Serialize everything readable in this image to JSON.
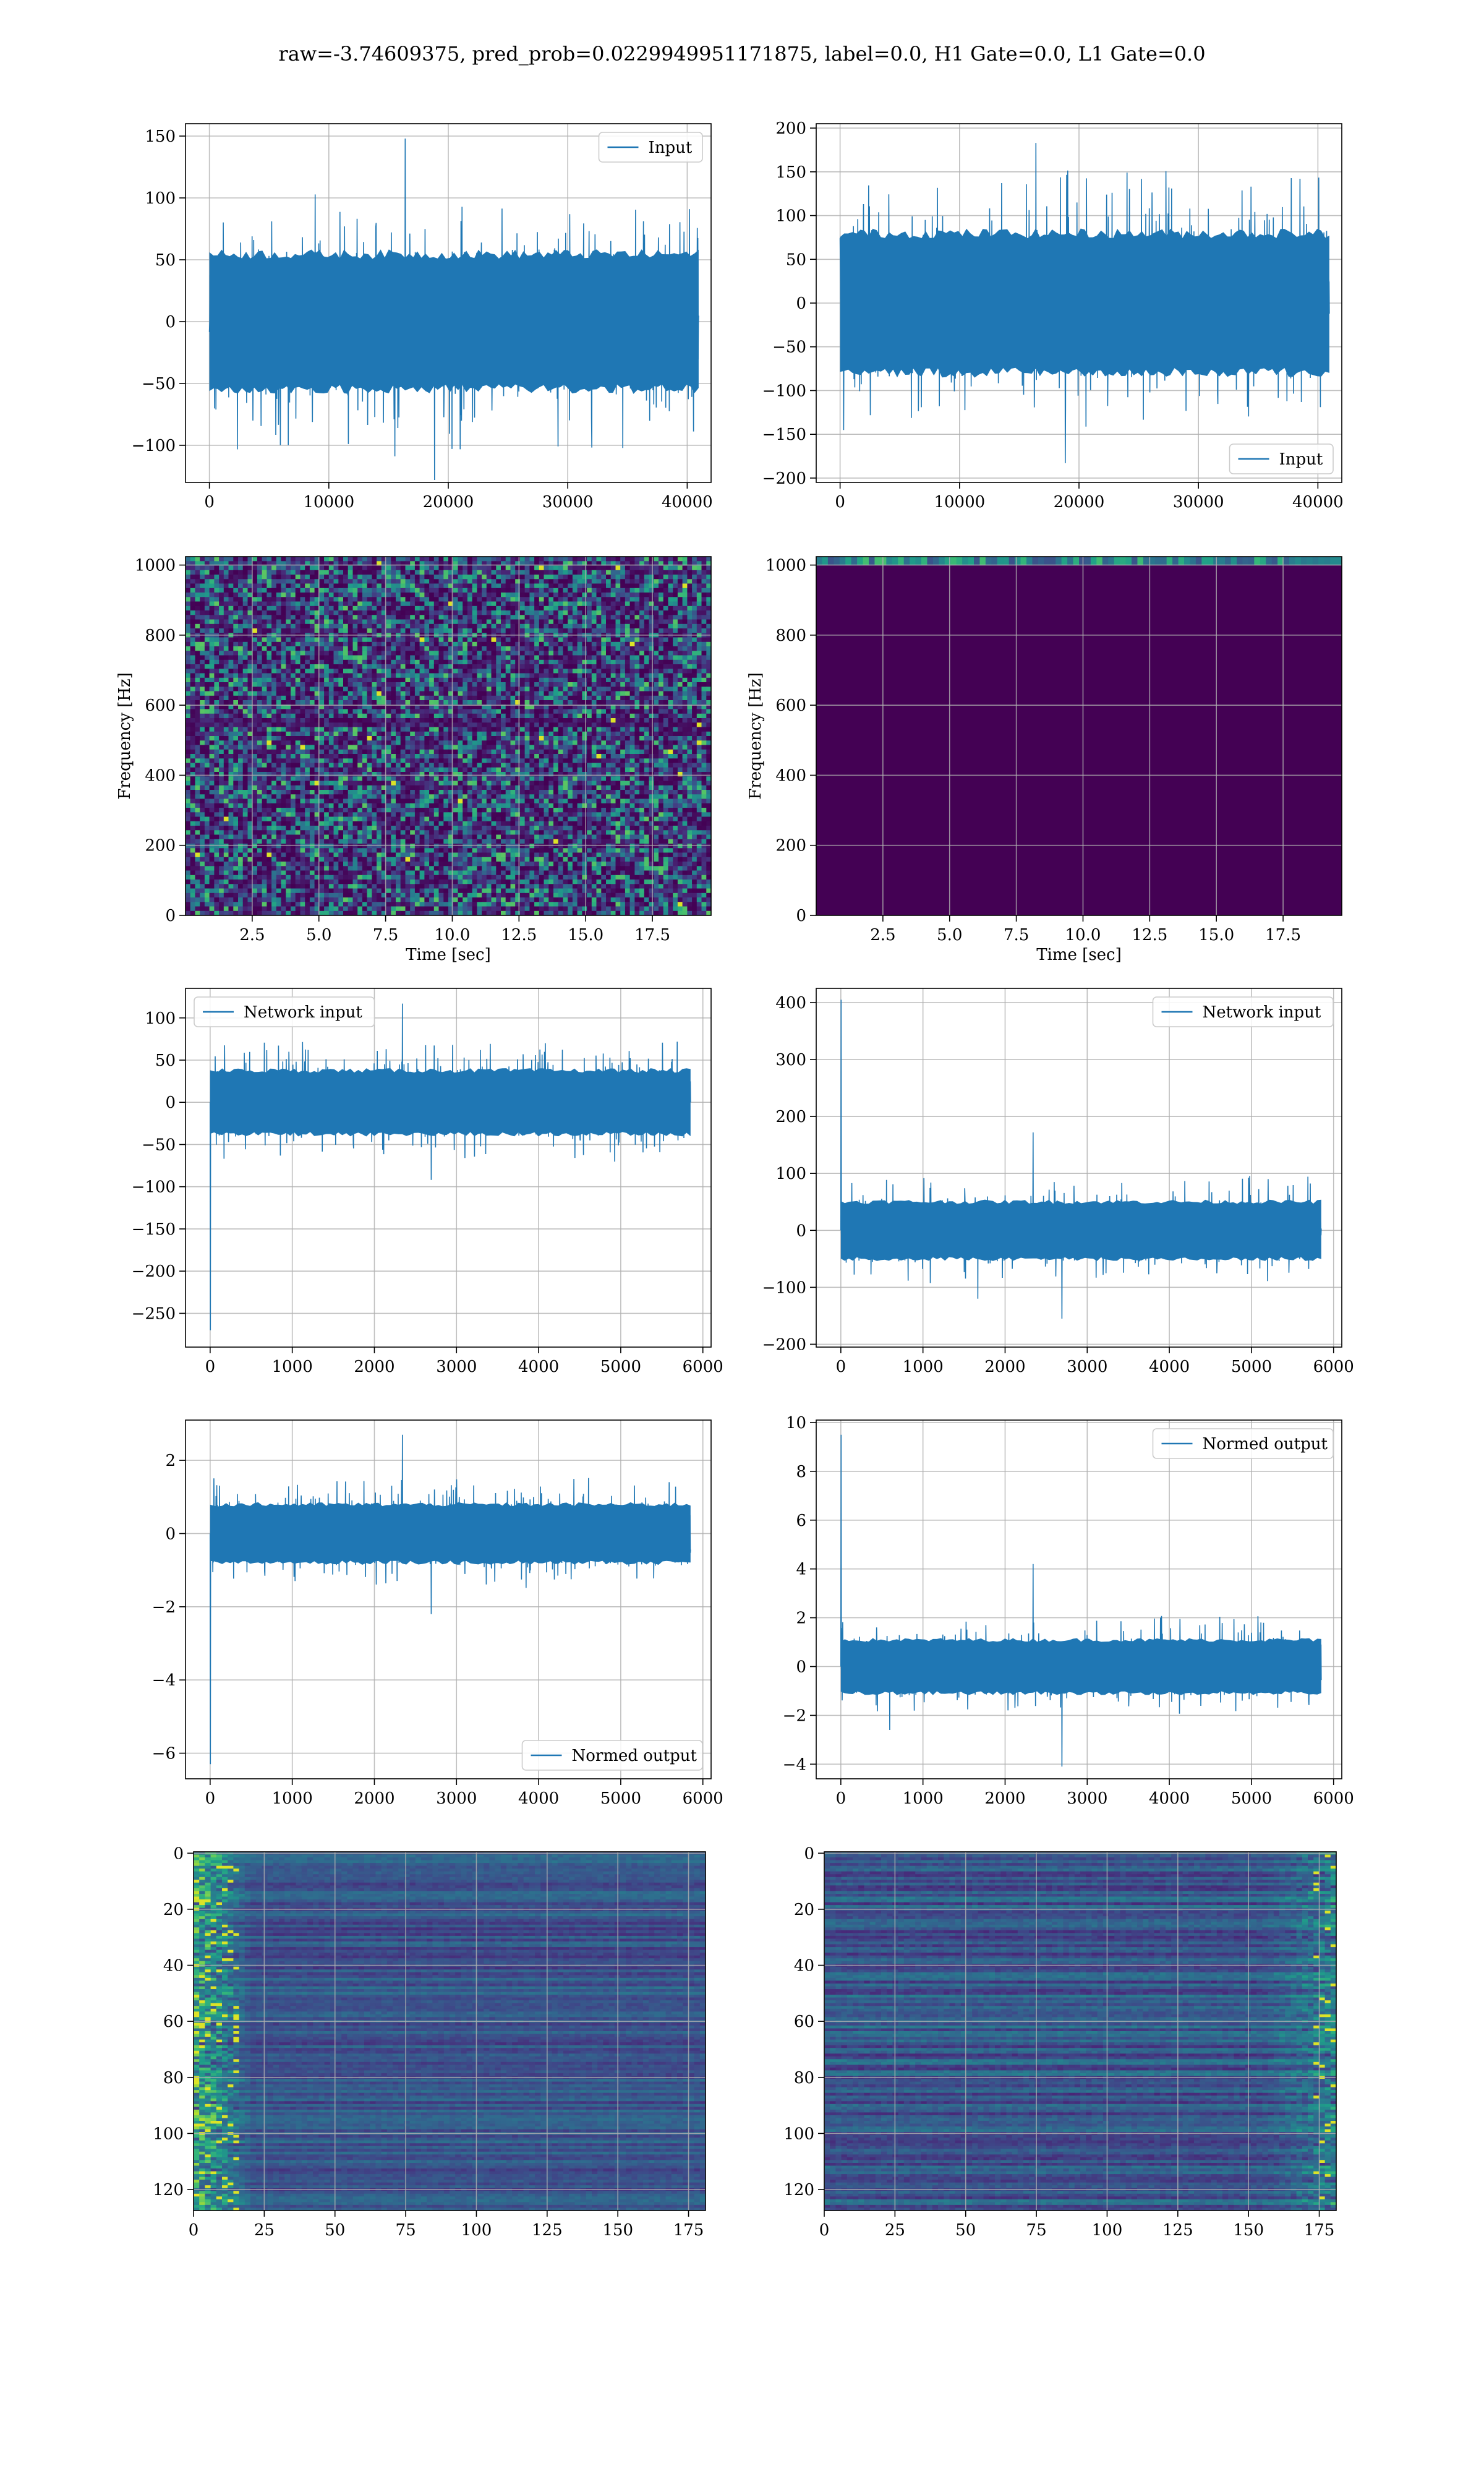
{
  "figure": {
    "suptitle": "raw=-3.74609375, pred_prob=0.0229949951171875, label=0.0, H1 Gate=0.0, L1 Gate=0.0",
    "colors": {
      "series": "#1f77b4",
      "grid": "#b0b0b0",
      "viridis_dark": "#440154",
      "viridis_yellow": "#fde725"
    }
  },
  "chart_data": [
    {
      "id": "ts-input-h1",
      "type": "line",
      "legend": "Input",
      "legend_loc": "upper right",
      "xlim": [
        -2000,
        42000
      ],
      "ylim": [
        -130,
        160
      ],
      "xticks": [
        0,
        10000,
        20000,
        30000,
        40000
      ],
      "yticks": [
        -100,
        -50,
        0,
        50,
        100,
        150
      ],
      "grid": true,
      "series": [
        {
          "name": "Input",
          "x_range": [
            0,
            40960
          ],
          "envelope_typical": [
            -65,
            65
          ],
          "peak_max": 148,
          "peak_min": -128
        }
      ]
    },
    {
      "id": "ts-input-l1",
      "type": "line",
      "legend": "Input",
      "legend_loc": "lower right",
      "xlim": [
        -2000,
        42000
      ],
      "ylim": [
        -205,
        205
      ],
      "xticks": [
        0,
        10000,
        20000,
        30000,
        40000
      ],
      "yticks": [
        -200,
        -150,
        -100,
        -50,
        0,
        50,
        100,
        150,
        200
      ],
      "grid": true,
      "series": [
        {
          "name": "Input",
          "x_range": [
            0,
            40960
          ],
          "envelope_typical": [
            -95,
            95
          ],
          "peak_max": 183,
          "peak_min": -183
        }
      ]
    },
    {
      "id": "spec-h1",
      "type": "heatmap",
      "colormap": "viridis",
      "pattern": "noise",
      "xlabel": "Time [sec]",
      "ylabel": "Frequency [Hz]",
      "xlim": [
        0,
        19.7
      ],
      "ylim": [
        0,
        1024
      ],
      "xticks": [
        2.5,
        5.0,
        7.5,
        10.0,
        12.5,
        15.0,
        17.5
      ],
      "xtick_labels": [
        "2.5",
        "5.0",
        "7.5",
        "10.0",
        "12.5",
        "15.0",
        "17.5"
      ],
      "yticks": [
        0,
        200,
        400,
        600,
        800,
        1000
      ],
      "grid": true
    },
    {
      "id": "spec-l1",
      "type": "heatmap",
      "colormap": "viridis",
      "pattern": "top-band",
      "xlabel": "Time [sec]",
      "ylabel": "Frequency [Hz]",
      "xlim": [
        0,
        19.7
      ],
      "ylim": [
        0,
        1024
      ],
      "xticks": [
        2.5,
        5.0,
        7.5,
        10.0,
        12.5,
        15.0,
        17.5
      ],
      "xtick_labels": [
        "2.5",
        "5.0",
        "7.5",
        "10.0",
        "12.5",
        "15.0",
        "17.5"
      ],
      "yticks": [
        0,
        200,
        400,
        600,
        800,
        1000
      ],
      "grid": true
    },
    {
      "id": "net-input-h1",
      "type": "line",
      "legend": "Network input",
      "legend_loc": "upper left",
      "xlim": [
        -300,
        6100
      ],
      "ylim": [
        -290,
        135
      ],
      "xticks": [
        0,
        1000,
        2000,
        3000,
        4000,
        5000,
        6000
      ],
      "yticks": [
        -250,
        -200,
        -150,
        -100,
        -50,
        0,
        50,
        100
      ],
      "grid": true,
      "series": [
        {
          "name": "Network input",
          "x_range": [
            0,
            5850
          ],
          "envelope_typical": [
            -45,
            45
          ],
          "peak_max": 117,
          "peak_min": -92,
          "initial_spike": -270
        }
      ]
    },
    {
      "id": "net-input-l1",
      "type": "line",
      "legend": "Network input",
      "legend_loc": "upper right",
      "xlim": [
        -300,
        6100
      ],
      "ylim": [
        -205,
        425
      ],
      "xticks": [
        0,
        1000,
        2000,
        3000,
        4000,
        5000,
        6000
      ],
      "yticks": [
        -200,
        -100,
        0,
        100,
        200,
        300,
        400
      ],
      "grid": true,
      "series": [
        {
          "name": "Network input",
          "x_range": [
            0,
            5850
          ],
          "envelope_typical": [
            -60,
            60
          ],
          "peak_max": 172,
          "peak_min": -155,
          "initial_spike": 405
        }
      ]
    },
    {
      "id": "normed-h1",
      "type": "line",
      "legend": "Normed output",
      "legend_loc": "lower right",
      "xlim": [
        -300,
        6100
      ],
      "ylim": [
        -6.7,
        3.1
      ],
      "xticks": [
        0,
        1000,
        2000,
        3000,
        4000,
        5000,
        6000
      ],
      "yticks": [
        -6,
        -4,
        -2,
        0,
        2
      ],
      "ytick_labels": [
        "−6",
        "−4",
        "−2",
        "0",
        "2"
      ],
      "grid": true,
      "series": [
        {
          "name": "Normed output",
          "x_range": [
            0,
            5850
          ],
          "envelope_typical": [
            -0.95,
            0.95
          ],
          "peak_max": 2.7,
          "peak_min": -2.2,
          "initial_spike": -6.3
        }
      ]
    },
    {
      "id": "normed-l1",
      "type": "line",
      "legend": "Normed output",
      "legend_loc": "upper right",
      "xlim": [
        -300,
        6100
      ],
      "ylim": [
        -4.6,
        10.1
      ],
      "xticks": [
        0,
        1000,
        2000,
        3000,
        4000,
        5000,
        6000
      ],
      "yticks": [
        -4,
        -2,
        0,
        2,
        4,
        6,
        8,
        10
      ],
      "ytick_labels": [
        "−4",
        "−2",
        "0",
        "2",
        "4",
        "6",
        "8",
        "10"
      ],
      "grid": true,
      "series": [
        {
          "name": "Normed output",
          "x_range": [
            0,
            5850
          ],
          "envelope_typical": [
            -1.3,
            1.3
          ],
          "peak_max": 4.2,
          "peak_min": -4.1,
          "initial_spike": 9.5
        }
      ]
    },
    {
      "id": "feat-h1",
      "type": "heatmap",
      "colormap": "viridis",
      "pattern": "left-bright",
      "xlim": [
        0,
        181
      ],
      "ylim": [
        127.5,
        -0.5
      ],
      "xticks": [
        0,
        25,
        50,
        75,
        100,
        125,
        150,
        175
      ],
      "yticks": [
        0,
        20,
        40,
        60,
        80,
        100,
        120
      ],
      "grid": true
    },
    {
      "id": "feat-l1",
      "type": "heatmap",
      "colormap": "viridis",
      "pattern": "right-bright",
      "xlim": [
        0,
        181
      ],
      "ylim": [
        127.5,
        -0.5
      ],
      "xticks": [
        0,
        25,
        50,
        75,
        100,
        125,
        150,
        175
      ],
      "yticks": [
        0,
        20,
        40,
        60,
        80,
        100,
        120
      ],
      "grid": true
    }
  ]
}
